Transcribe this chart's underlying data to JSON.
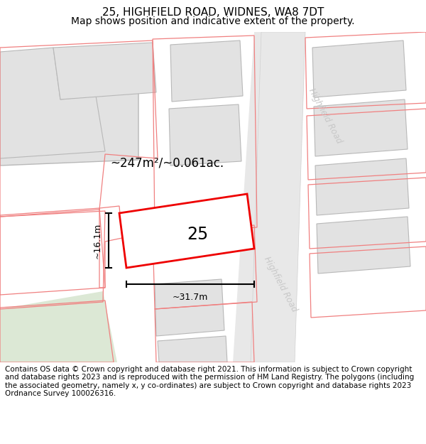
{
  "title": "25, HIGHFIELD ROAD, WIDNES, WA8 7DT",
  "subtitle": "Map shows position and indicative extent of the property.",
  "footer": "Contains OS data © Crown copyright and database right 2021. This information is subject to Crown copyright and database rights 2023 and is reproduced with the permission of HM Land Registry. The polygons (including the associated geometry, namely x, y co-ordinates) are subject to Crown copyright and database rights 2023 Ordnance Survey 100026316.",
  "area_label": "~247m²/~0.061ac.",
  "house_number": "25",
  "dim_width": "~31.7m",
  "dim_height": "~16.1m",
  "road_label": "Highfield Road",
  "title_fontsize": 11,
  "subtitle_fontsize": 10,
  "footer_fontsize": 7.5,
  "map_bg": "#ffffff",
  "road_fill": "#e8e8e8",
  "building_fill": "#e2e2e2",
  "building_edge": "#b8b8b8",
  "pink": "#f08080",
  "red": "#ee0000",
  "green_fill": "#dce8d5",
  "road_label_color": "#c8c8c8",
  "dim_color": "#111111"
}
